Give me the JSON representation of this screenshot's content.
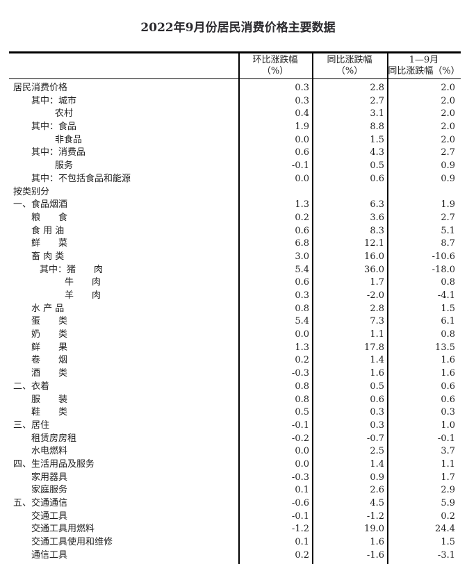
{
  "title": "2022年9月份居民消费价格主要数据",
  "table": {
    "columns": [
      {
        "line1": "",
        "line2": ""
      },
      {
        "line1": "环比涨跌幅",
        "line2": "（%）"
      },
      {
        "line1": "同比涨跌幅",
        "line2": "（%）"
      },
      {
        "line1": "1—9月",
        "line2": "同比涨跌幅（%）"
      }
    ],
    "rows": [
      {
        "name": "居民消费价格",
        "level": 0,
        "mom": "0.3",
        "yoy": "2.8",
        "ytd": "2.0"
      },
      {
        "name": "其中：城市",
        "level": 1,
        "mom": "0.3",
        "yoy": "2.7",
        "ytd": "2.0"
      },
      {
        "name": "农村",
        "level": 3,
        "mom": "0.4",
        "yoy": "3.1",
        "ytd": "2.0"
      },
      {
        "name": "其中：食品",
        "level": 1,
        "mom": "1.9",
        "yoy": "8.8",
        "ytd": "2.0"
      },
      {
        "name": "非食品",
        "level": 3,
        "mom": "0.0",
        "yoy": "1.5",
        "ytd": "2.0"
      },
      {
        "name": "其中：消费品",
        "level": 1,
        "mom": "0.6",
        "yoy": "4.3",
        "ytd": "2.7"
      },
      {
        "name": "服务",
        "level": 3,
        "mom": "-0.1",
        "yoy": "0.5",
        "ytd": "0.9"
      },
      {
        "name": "其中：不包括食品和能源",
        "level": 1,
        "mom": "0.0",
        "yoy": "0.6",
        "ytd": "0.9"
      },
      {
        "name": "按类别分",
        "level": 0,
        "mom": "",
        "yoy": "",
        "ytd": ""
      },
      {
        "name": "一、食品烟酒",
        "level": 0,
        "mom": "1.3",
        "yoy": "6.3",
        "ytd": "1.9"
      },
      {
        "name": "粮　　食",
        "level": 1,
        "mom": "0.2",
        "yoy": "3.6",
        "ytd": "2.7"
      },
      {
        "name": "食 用 油",
        "level": 1,
        "mom": "0.6",
        "yoy": "8.3",
        "ytd": "5.1"
      },
      {
        "name": "鲜　　菜",
        "level": 1,
        "mom": "6.8",
        "yoy": "12.1",
        "ytd": "8.7"
      },
      {
        "name": "畜 肉 类",
        "level": 1,
        "mom": "3.0",
        "yoy": "16.0",
        "ytd": "-10.6"
      },
      {
        "name": "其中：猪　　肉",
        "level": 2,
        "mom": "5.4",
        "yoy": "36.0",
        "ytd": "-18.0"
      },
      {
        "name": "牛　　肉",
        "level": 4,
        "mom": "0.6",
        "yoy": "1.7",
        "ytd": "0.8"
      },
      {
        "name": "羊　　肉",
        "level": 4,
        "mom": "0.3",
        "yoy": "-2.0",
        "ytd": "-4.1"
      },
      {
        "name": "水 产 品",
        "level": 1,
        "mom": "0.8",
        "yoy": "2.8",
        "ytd": "1.5"
      },
      {
        "name": "蛋　　类",
        "level": 1,
        "mom": "5.4",
        "yoy": "7.3",
        "ytd": "6.1"
      },
      {
        "name": "奶　　类",
        "level": 1,
        "mom": "0.0",
        "yoy": "1.1",
        "ytd": "0.8"
      },
      {
        "name": "鲜　　果",
        "level": 1,
        "mom": "1.3",
        "yoy": "17.8",
        "ytd": "13.5"
      },
      {
        "name": "卷　　烟",
        "level": 1,
        "mom": "0.2",
        "yoy": "1.4",
        "ytd": "1.6"
      },
      {
        "name": "酒　　类",
        "level": 1,
        "mom": "-0.3",
        "yoy": "1.6",
        "ytd": "1.6"
      },
      {
        "name": "二、衣着",
        "level": 0,
        "mom": "0.8",
        "yoy": "0.5",
        "ytd": "0.6"
      },
      {
        "name": "服　　装",
        "level": 1,
        "mom": "0.8",
        "yoy": "0.6",
        "ytd": "0.6"
      },
      {
        "name": "鞋　　类",
        "level": 1,
        "mom": "0.5",
        "yoy": "0.3",
        "ytd": "0.3"
      },
      {
        "name": "三、居住",
        "level": 0,
        "mom": "-0.1",
        "yoy": "0.3",
        "ytd": "1.0"
      },
      {
        "name": "租赁房房租",
        "level": 1,
        "mom": "-0.2",
        "yoy": "-0.7",
        "ytd": "-0.1"
      },
      {
        "name": "水电燃料",
        "level": 1,
        "mom": "0.0",
        "yoy": "2.5",
        "ytd": "3.7"
      },
      {
        "name": "四、生活用品及服务",
        "level": 0,
        "mom": "0.0",
        "yoy": "1.4",
        "ytd": "1.1"
      },
      {
        "name": "家用器具",
        "level": 1,
        "mom": "-0.3",
        "yoy": "0.9",
        "ytd": "1.7"
      },
      {
        "name": "家庭服务",
        "level": 1,
        "mom": "0.1",
        "yoy": "2.6",
        "ytd": "2.9"
      },
      {
        "name": "五、交通通信",
        "level": 0,
        "mom": "-0.6",
        "yoy": "4.5",
        "ytd": "5.9"
      },
      {
        "name": "交通工具",
        "level": 1,
        "mom": "-0.1",
        "yoy": "-1.2",
        "ytd": "0.2"
      },
      {
        "name": "交通工具用燃料",
        "level": 1,
        "mom": "-1.2",
        "yoy": "19.0",
        "ytd": "24.4"
      },
      {
        "name": "交通工具使用和维修",
        "level": 1,
        "mom": "0.1",
        "yoy": "1.6",
        "ytd": "1.5"
      },
      {
        "name": "通信工具",
        "level": 1,
        "mom": "0.2",
        "yoy": "-1.6",
        "ytd": "-3.1"
      }
    ]
  }
}
